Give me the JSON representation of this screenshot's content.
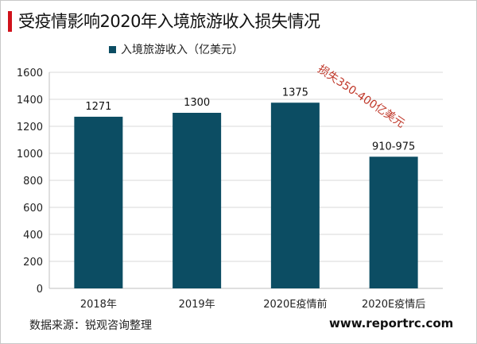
{
  "title": "受疫情影响2020年入境旅游收入损失情况",
  "legend_label": "入境旅游收入（亿美元）",
  "source": "数据来源：锐观咨询整理",
  "website": "www.reportrc.com",
  "annotation": "损失350-400亿美元",
  "colors": {
    "bar": "#0c4d63",
    "accent": "#d0121b",
    "annotation": "#c0392b",
    "grid": "#d9d9d9"
  },
  "chart_data": {
    "type": "bar",
    "categories": [
      "2018年",
      "2019年",
      "2020E疫情前",
      "2020E疫情后"
    ],
    "values": [
      1271,
      1300,
      1375,
      975
    ],
    "value_labels": [
      "1271",
      "1300",
      "1375",
      "910-975"
    ],
    "series": [
      {
        "name": "入境旅游收入（亿美元）",
        "values": [
          1271,
          1300,
          1375,
          975
        ]
      }
    ],
    "ylim": [
      0,
      1600
    ],
    "yticks": [
      0,
      200,
      400,
      600,
      800,
      1000,
      1200,
      1400,
      1600
    ],
    "grid": true,
    "legend": "top-left"
  }
}
